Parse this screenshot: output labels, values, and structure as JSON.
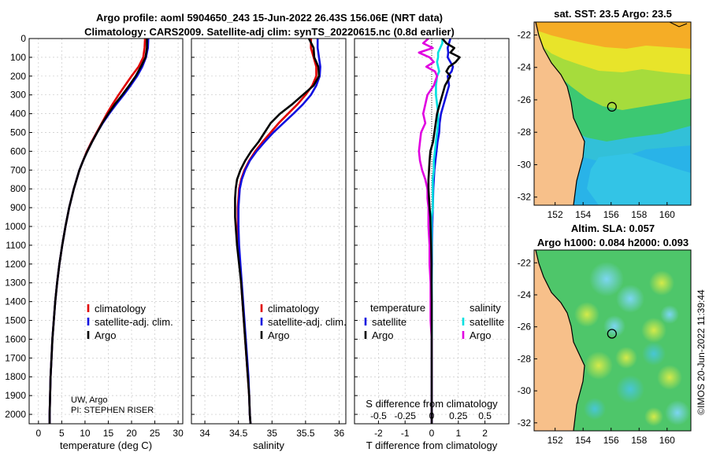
{
  "header": {
    "title_line1": "Argo profile: aoml 5904650_243 15-Jun-2022 26.43S 156.06E (NRT data)",
    "title_line2": "Climatology: CARS2009. Satellite-adj clim: synTS_20220615.nc (0.8d earlier)"
  },
  "credits": {
    "institution": "UW, Argo",
    "pi": "PI: STEPHEN RISER",
    "watermark": "©IMOS 20-Jun-2022 11:39:44"
  },
  "colors": {
    "climatology": "#e00000",
    "satellite_adj": "#1010e0",
    "argo": "#000000",
    "s_satellite": "#00e0e0",
    "s_argo": "#e000e0"
  },
  "chart_data": [
    {
      "id": "temperature",
      "type": "line",
      "xlabel": "temperature (deg C)",
      "ylabel": "",
      "xlim": [
        -2,
        31
      ],
      "ylim": [
        2050,
        0
      ],
      "xticks": [
        0,
        5,
        10,
        15,
        20,
        25,
        30
      ],
      "yticks": [
        0,
        100,
        200,
        300,
        400,
        500,
        600,
        700,
        800,
        900,
        1000,
        1100,
        1200,
        1300,
        1400,
        1500,
        1600,
        1700,
        1800,
        1900,
        2000
      ],
      "grid": true,
      "legend": {
        "position": "center-right",
        "entries": [
          "climatology",
          "satellite-adj. clim.",
          "Argo"
        ]
      },
      "depth": [
        0,
        50,
        100,
        150,
        200,
        250,
        300,
        350,
        400,
        450,
        500,
        550,
        600,
        650,
        700,
        800,
        900,
        1000,
        1100,
        1200,
        1300,
        1400,
        1500,
        1600,
        1700,
        1800,
        1900,
        2000,
        2050
      ],
      "series": [
        {
          "name": "climatology",
          "values": [
            22.9,
            22.8,
            22.5,
            21.5,
            20.0,
            18.6,
            17.2,
            15.9,
            14.7,
            13.6,
            12.5,
            11.4,
            10.4,
            9.6,
            8.8,
            7.6,
            6.6,
            5.8,
            5.1,
            4.5,
            4.0,
            3.6,
            3.3,
            3.0,
            2.8,
            2.6,
            2.5,
            2.4,
            2.4
          ]
        },
        {
          "name": "satellite-adj. clim.",
          "values": [
            23.6,
            23.5,
            23.1,
            22.3,
            21.2,
            19.8,
            18.3,
            16.7,
            15.2,
            13.8,
            12.6,
            11.5,
            10.5,
            9.6,
            8.8,
            7.6,
            6.6,
            5.8,
            5.1,
            4.5,
            4.0,
            3.6,
            3.3,
            3.0,
            2.8,
            2.6,
            2.5,
            2.4,
            2.4
          ]
        },
        {
          "name": "Argo",
          "values": [
            23.3,
            23.3,
            23.0,
            22.0,
            20.9,
            19.5,
            18.0,
            16.4,
            15.0,
            13.7,
            12.6,
            11.5,
            10.5,
            9.6,
            8.8,
            7.6,
            6.6,
            5.8,
            5.1,
            4.5,
            4.0,
            3.6,
            3.3,
            3.0,
            2.8,
            2.6,
            2.5,
            2.4,
            2.4
          ]
        }
      ]
    },
    {
      "id": "salinity",
      "type": "line",
      "xlabel": "salinity",
      "ylabel": "",
      "xlim": [
        33.8,
        36.1
      ],
      "ylim": [
        2050,
        0
      ],
      "xticks": [
        34,
        34.5,
        35,
        35.5,
        36
      ],
      "grid": true,
      "legend": {
        "position": "center-right",
        "entries": [
          "climatology",
          "satellite-adj. clim.",
          "Argo"
        ]
      },
      "depth": [
        0,
        50,
        100,
        150,
        200,
        250,
        300,
        350,
        400,
        450,
        500,
        550,
        600,
        650,
        700,
        750,
        800,
        850,
        900,
        950,
        1000,
        1100,
        1200,
        1300,
        1400,
        1500,
        1600,
        1700,
        1800,
        1900,
        2000,
        2050
      ],
      "series": [
        {
          "name": "climatology",
          "values": [
            35.58,
            35.58,
            35.62,
            35.66,
            35.66,
            35.6,
            35.5,
            35.38,
            35.24,
            35.1,
            34.98,
            34.86,
            34.75,
            34.66,
            34.59,
            34.54,
            34.51,
            34.5,
            34.49,
            34.49,
            34.49,
            34.5,
            34.52,
            34.54,
            34.56,
            34.58,
            34.6,
            34.62,
            34.64,
            34.66,
            34.67,
            34.68
          ]
        },
        {
          "name": "satellite-adj. clim.",
          "values": [
            35.68,
            35.68,
            35.7,
            35.72,
            35.71,
            35.66,
            35.58,
            35.46,
            35.32,
            35.17,
            35.02,
            34.89,
            34.77,
            34.67,
            34.6,
            34.55,
            34.52,
            34.51,
            34.5,
            34.5,
            34.5,
            34.51,
            34.53,
            34.55,
            34.57,
            34.59,
            34.61,
            34.63,
            34.65,
            34.66,
            34.67,
            34.68
          ]
        },
        {
          "name": "Argo",
          "values": [
            35.55,
            35.62,
            35.63,
            35.69,
            35.7,
            35.62,
            35.46,
            35.3,
            35.12,
            34.98,
            34.89,
            34.8,
            34.69,
            34.6,
            34.53,
            34.48,
            34.46,
            34.45,
            34.45,
            34.45,
            34.46,
            34.48,
            34.51,
            34.54,
            34.56,
            34.58,
            34.6,
            34.62,
            34.64,
            34.66,
            34.67,
            34.68
          ]
        }
      ]
    },
    {
      "id": "difference",
      "type": "line",
      "xlabel": "T difference from climatology",
      "x2label": "S difference from climatology",
      "xlim": [
        -2.9,
        2.9
      ],
      "ylim": [
        2050,
        0
      ],
      "xticks": [
        -2,
        -1,
        0,
        1,
        2
      ],
      "x2ticks": [
        -0.5,
        -0.25,
        0,
        0.25,
        0.5
      ],
      "x2ticklabels": [
        "-0.5",
        "-0.25",
        "0",
        "0.25",
        "0.5"
      ],
      "grid": true,
      "legend": {
        "position": "center",
        "temperature_title": "temperature",
        "salinity_title": "salinity",
        "entries": [
          "satellite",
          "Argo",
          "satellite",
          "Argo"
        ]
      },
      "depth": [
        0,
        25,
        50,
        75,
        100,
        125,
        150,
        175,
        200,
        250,
        300,
        350,
        400,
        450,
        500,
        550,
        600,
        650,
        700,
        750,
        800,
        850,
        900,
        950,
        1000,
        1100,
        1200,
        1300,
        1400,
        1500,
        1600,
        1700,
        1800,
        1900,
        2000,
        2050
      ],
      "series": [
        {
          "name": "T satellite",
          "values": [
            0.7,
            0.65,
            0.6,
            0.62,
            0.6,
            0.7,
            0.8,
            0.75,
            0.6,
            0.65,
            0.55,
            0.45,
            0.35,
            0.3,
            0.28,
            0.22,
            0.18,
            0.14,
            0.1,
            0.08,
            0.06,
            0.05,
            0.04,
            0.03,
            0.02,
            0.01,
            0.01,
            0.0,
            0.0,
            0.0,
            0.0,
            0.0,
            0.0,
            0.0,
            0.0,
            0.0
          ]
        },
        {
          "name": "T Argo",
          "values": [
            0.4,
            0.55,
            0.85,
            0.7,
            1.05,
            0.9,
            0.65,
            0.55,
            0.7,
            0.5,
            0.4,
            0.3,
            0.2,
            0.15,
            0.1,
            0.05,
            -0.05,
            -0.08,
            -0.1,
            -0.12,
            -0.12,
            -0.1,
            -0.08,
            -0.05,
            -0.04,
            -0.02,
            -0.01,
            -0.01,
            0.0,
            0.0,
            0.0,
            0.0,
            0.0,
            0.0,
            0.0,
            0.0
          ]
        },
        {
          "name": "S satellite",
          "values": [
            0.1,
            0.1,
            0.08,
            0.06,
            0.06,
            0.05,
            0.06,
            0.07,
            0.05,
            0.04,
            0.04,
            0.05,
            0.06,
            0.06,
            0.05,
            0.04,
            0.03,
            0.02,
            0.02,
            0.01,
            0.01,
            0.01,
            0.01,
            0.0,
            0.0,
            0.0,
            0.0,
            0.0,
            0.0,
            0.0,
            0.0,
            0.0,
            0.0,
            0.0,
            0.0,
            0.0
          ]
        },
        {
          "name": "S Argo",
          "values": [
            -0.03,
            -0.08,
            0.01,
            -0.12,
            -0.02,
            0.02,
            -0.05,
            0.03,
            0.05,
            0.02,
            -0.04,
            -0.06,
            -0.08,
            -0.06,
            -0.1,
            -0.11,
            -0.12,
            -0.11,
            -0.09,
            -0.06,
            -0.04,
            -0.04,
            -0.03,
            -0.03,
            -0.03,
            -0.02,
            -0.02,
            -0.01,
            -0.01,
            -0.01,
            0.0,
            0.0,
            0.0,
            0.0,
            0.0,
            0.0
          ]
        }
      ]
    },
    {
      "id": "sst_map",
      "type": "heatmap",
      "title": "sat. SST: 23.5  Argo: 23.5",
      "lon_range": [
        150.5,
        161.7
      ],
      "lat_range": [
        -32.5,
        -21.2
      ],
      "xticks": [
        152,
        154,
        156,
        158,
        160
      ],
      "yticks": [
        -22,
        -24,
        -26,
        -28,
        -30,
        -32
      ],
      "argo_position": {
        "lon": 156.06,
        "lat": -26.43
      }
    },
    {
      "id": "sla_map",
      "type": "heatmap",
      "title_line1": "Altim. SLA: 0.057",
      "title_line2": "Argo h1000: 0.084 h2000: 0.093",
      "lon_range": [
        150.5,
        161.7
      ],
      "lat_range": [
        -32.5,
        -21.2
      ],
      "xticks": [
        152,
        154,
        156,
        158,
        160
      ],
      "yticks": [
        -22,
        -24,
        -26,
        -28,
        -30,
        -32
      ],
      "argo_position": {
        "lon": 156.06,
        "lat": -26.43
      }
    }
  ]
}
